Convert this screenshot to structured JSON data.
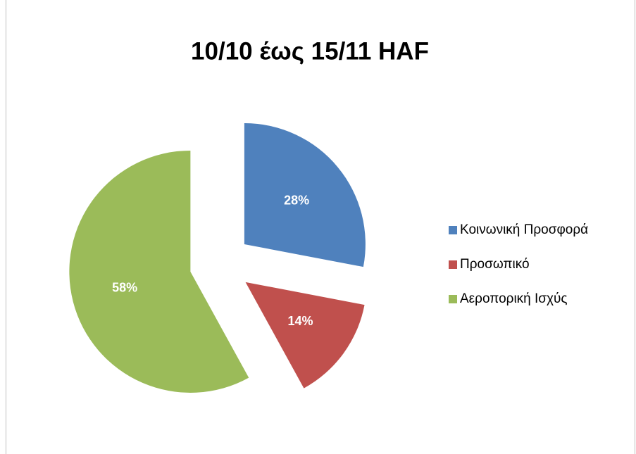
{
  "chart_data": {
    "type": "pie",
    "title": "10/10 έως 15/11 HAF",
    "categories": [
      "Κοινωνική Προσφορά",
      "Προσωπικό",
      "Αεροπορική Ισχύς"
    ],
    "values": [
      28,
      14,
      58
    ],
    "value_labels": [
      "28%",
      "14%",
      "58%"
    ],
    "colors": [
      "#4f81bd",
      "#c0504d",
      "#9bbb59"
    ],
    "legend": "right"
  }
}
